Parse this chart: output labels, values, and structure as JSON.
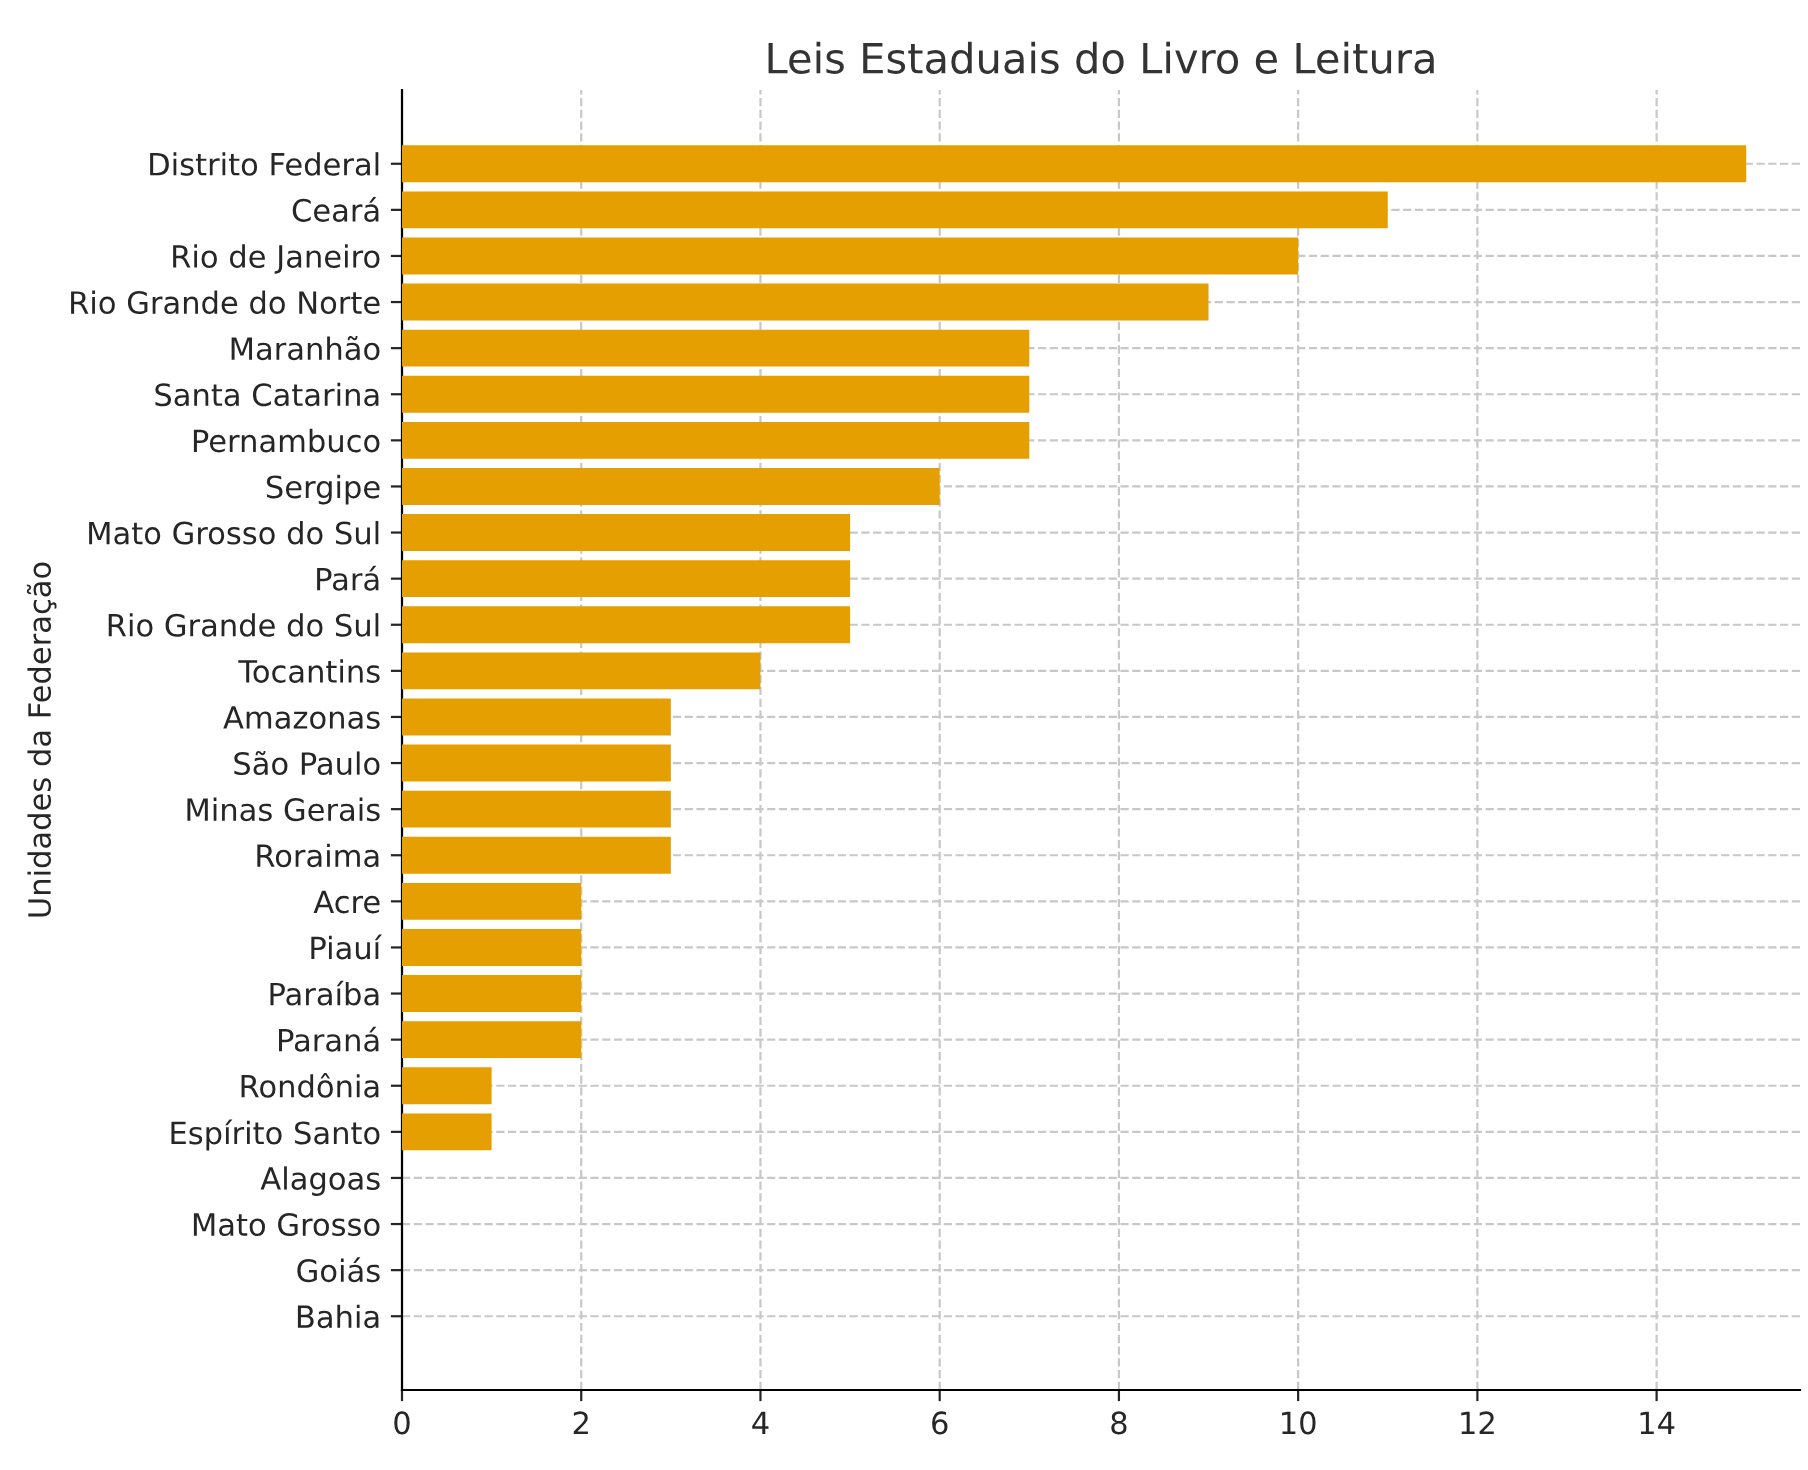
{
  "chart_data": {
    "type": "bar",
    "orientation": "horizontal",
    "title": "Leis Estaduais do Livro e Leitura",
    "ylabel": "Unidades da Federação",
    "categories": [
      "Distrito Federal",
      "Ceará",
      "Rio de Janeiro",
      "Rio Grande do Norte",
      "Maranhão",
      "Santa Catarina",
      "Pernambuco",
      "Sergipe",
      "Mato Grosso do Sul",
      "Pará",
      "Rio Grande do Sul",
      "Tocantins",
      "Amazonas",
      "São Paulo",
      "Minas Gerais",
      "Roraima",
      "Acre",
      "Piauí",
      "Paraíba",
      "Paraná",
      "Rondônia",
      "Espírito Santo",
      "Alagoas",
      "Mato Grosso",
      "Goiás",
      "Bahia"
    ],
    "values": [
      15,
      11,
      10,
      9,
      7,
      7,
      7,
      6,
      5,
      5,
      5,
      4,
      3,
      3,
      3,
      3,
      2,
      2,
      2,
      2,
      1,
      1,
      0,
      0,
      0,
      0
    ],
    "color": "#e69f00",
    "xlim": [
      0,
      15.6
    ],
    "xticks": [
      0,
      2,
      4,
      6,
      8,
      10,
      12,
      14
    ],
    "grid": true
  }
}
